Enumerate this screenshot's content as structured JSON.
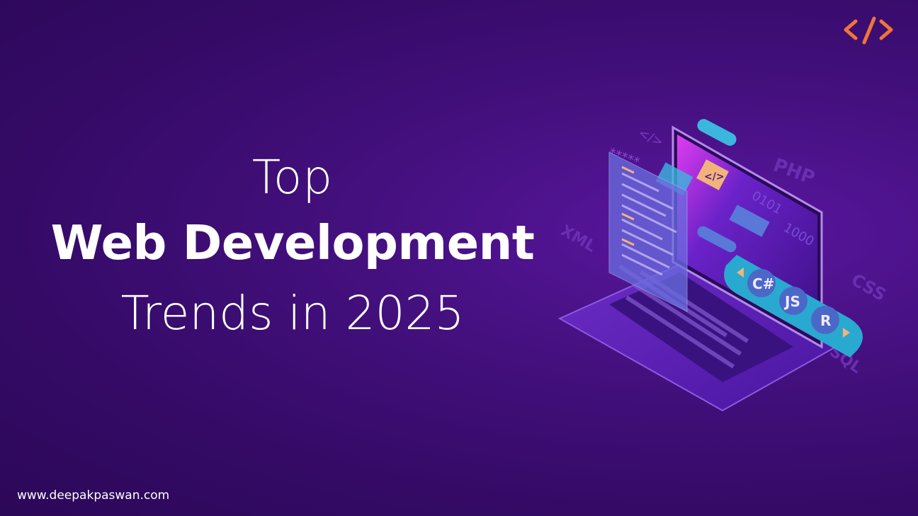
{
  "heading": {
    "line1": "Top",
    "line2": "Web Development",
    "line3": "Trends in 2025"
  },
  "footer": {
    "website": "www.deepakpaswan.com"
  },
  "logo": {
    "icon": "code-brackets-icon",
    "color": "#f0743a"
  },
  "illustration": {
    "labels": {
      "php": "PHP",
      "xml": "XML",
      "css": "CSS",
      "sql": "SQL",
      "tag": "</>",
      "stars": "*****",
      "binary1": "0101",
      "binary2": "1000",
      "csharp": "C#",
      "js": "JS",
      "r": "R"
    },
    "colors": {
      "background": "#3a0a6a",
      "accent_cyan": "#2bb5d8",
      "accent_orange": "#f2b37a",
      "screen_magenta": "#e03cf0"
    }
  }
}
